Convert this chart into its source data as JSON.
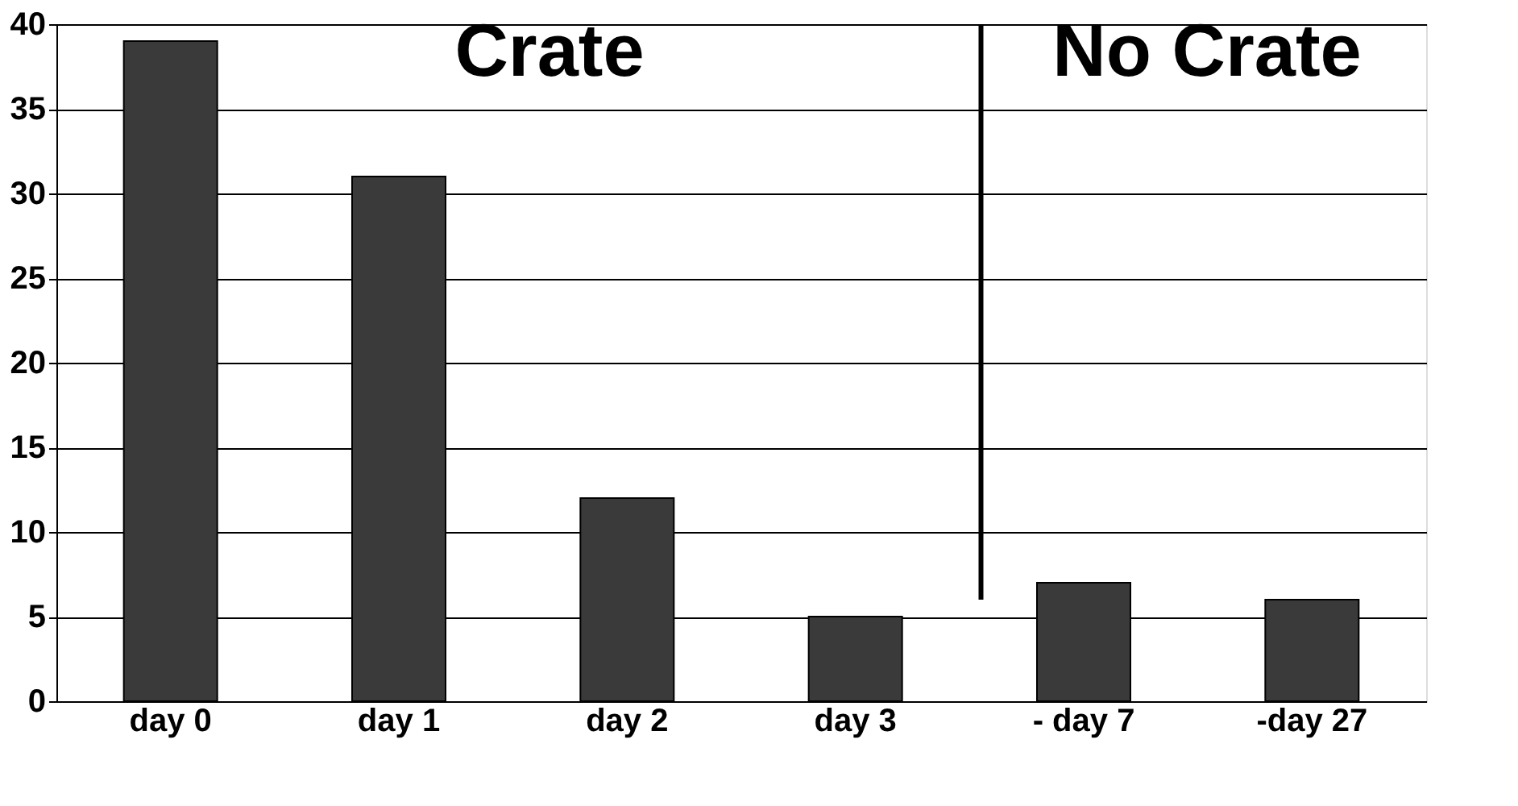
{
  "chart_data": {
    "type": "bar",
    "categories": [
      "day 0",
      "day 1",
      "day 2",
      "day 3",
      "- day 7",
      "-day 27"
    ],
    "values": [
      39,
      31,
      12,
      5,
      7,
      6
    ],
    "color": "#3a3a3a",
    "ylim": [
      0,
      40
    ],
    "yticks": [
      0,
      5,
      10,
      15,
      20,
      25,
      30,
      35,
      40
    ],
    "grid": "y",
    "annotations": [
      "Crate",
      "No Crate"
    ],
    "ref_lines": [
      {
        "axis": "x",
        "value": "- day 7",
        "color": "#000000"
      }
    ]
  }
}
